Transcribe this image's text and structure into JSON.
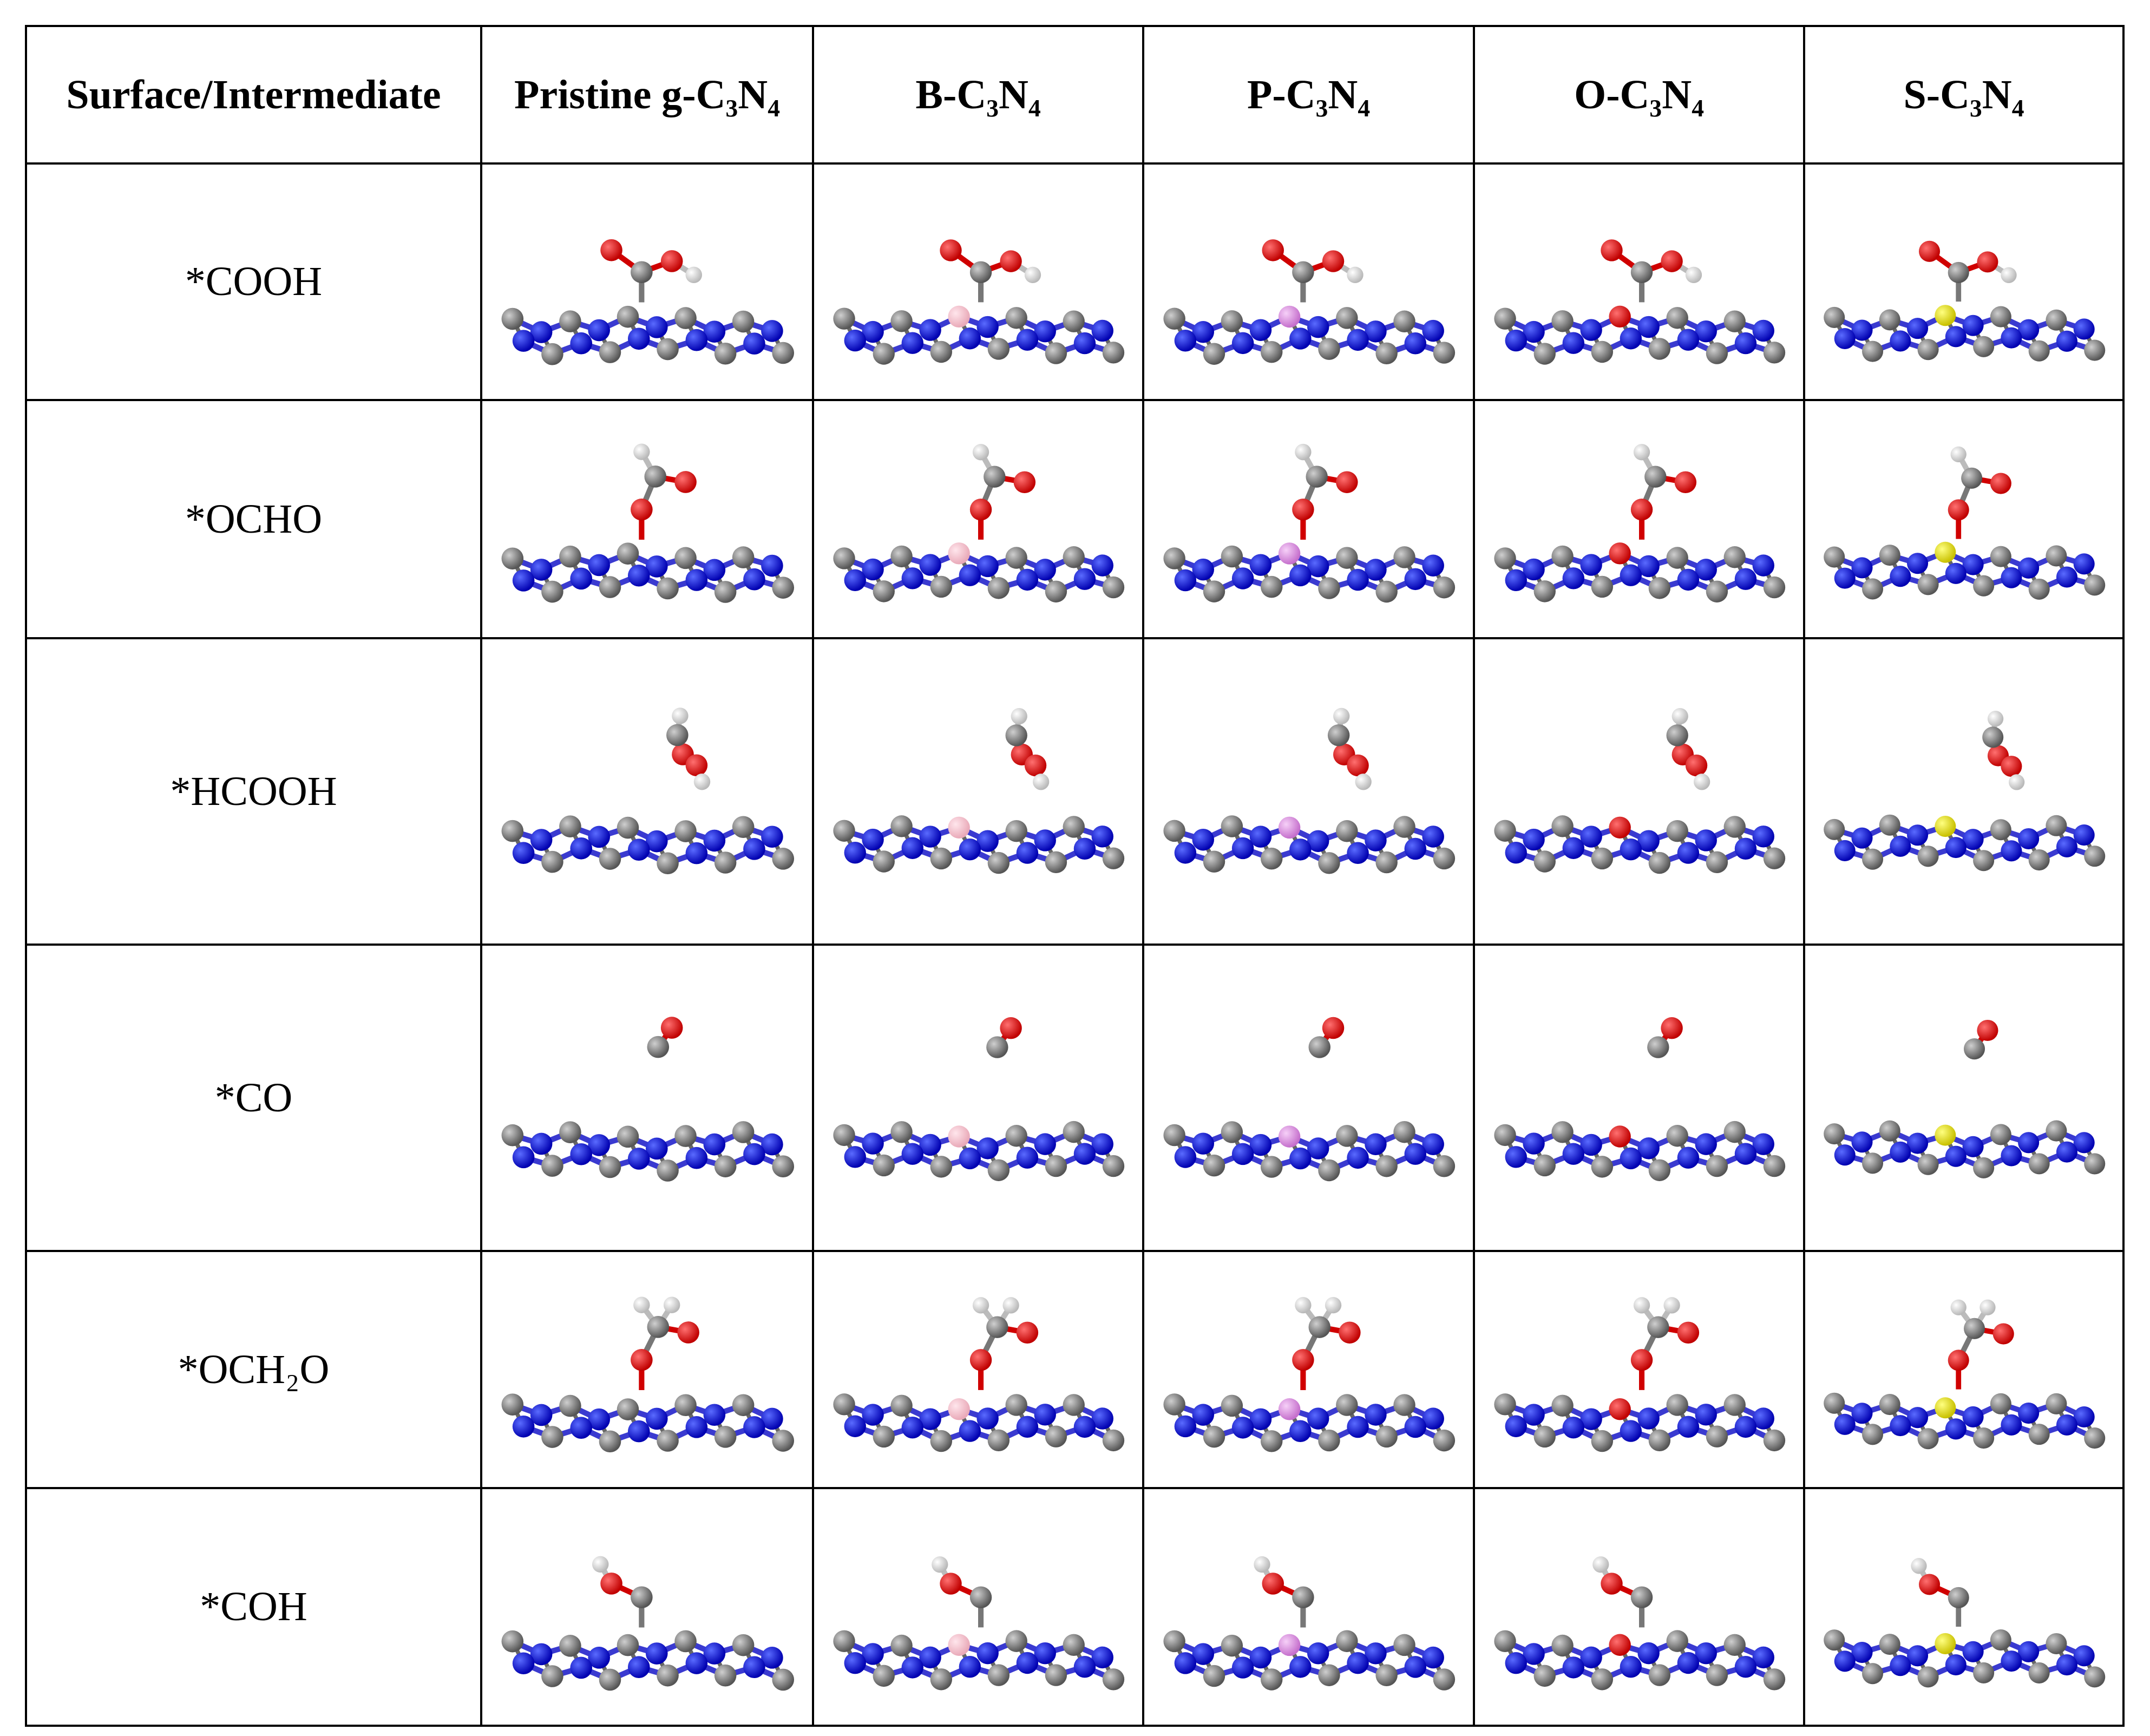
{
  "table": {
    "header": [
      "Surface/Intermediate",
      "Pristine g-C₃N₄",
      "B-C₃N₄",
      "P-C₃N₄",
      "O-C₃N₄",
      "S-C₃N₄"
    ],
    "rows": [
      [
        "*COOH"
      ],
      [
        "*OCHO"
      ],
      [
        "*HCOOH"
      ],
      [
        "*CO"
      ],
      [
        "*OCH₂O"
      ],
      [
        "*COH"
      ]
    ]
  }
}
